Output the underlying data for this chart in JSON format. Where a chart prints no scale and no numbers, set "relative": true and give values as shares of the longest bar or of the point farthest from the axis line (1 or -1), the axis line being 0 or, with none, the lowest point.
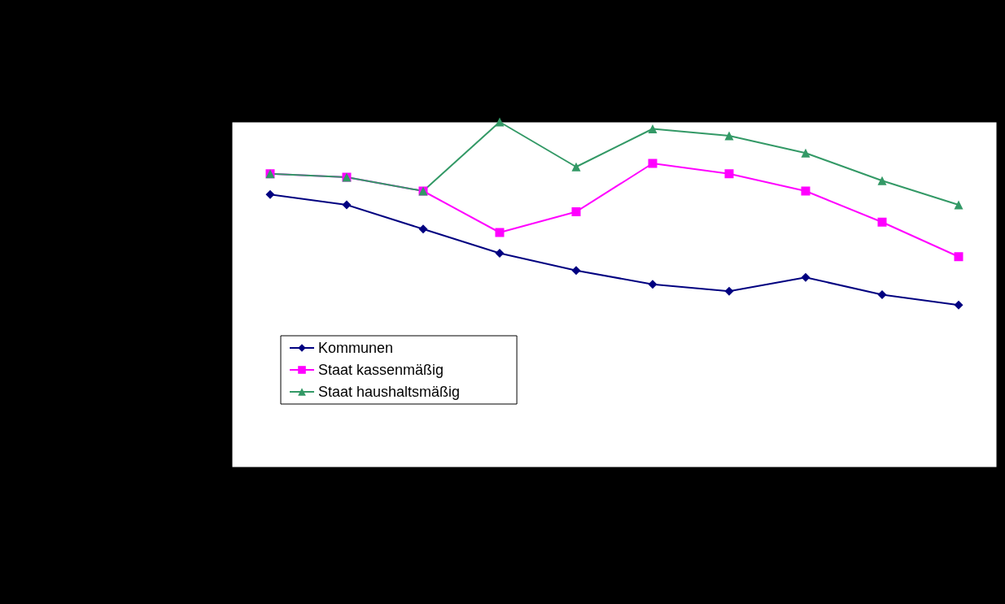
{
  "chart_data": {
    "type": "line",
    "relative": true,
    "categories": [
      null,
      null,
      null,
      null,
      null,
      null,
      null,
      null,
      null,
      null
    ],
    "series": [
      {
        "name": "Kommunen",
        "color": "#000080",
        "marker": "diamond",
        "values": [
          0.79,
          0.76,
          0.69,
          0.62,
          0.57,
          0.53,
          0.51,
          0.55,
          0.5,
          0.47
        ]
      },
      {
        "name": "Staat kassenmäßig",
        "color": "#ff00ff",
        "marker": "square",
        "values": [
          0.85,
          0.84,
          0.8,
          0.68,
          0.74,
          0.88,
          0.85,
          0.8,
          0.71,
          0.61
        ]
      },
      {
        "name": "Staat haushaltsmäßig",
        "color": "#339966",
        "marker": "triangle",
        "values": [
          0.85,
          0.84,
          0.8,
          1,
          0.87,
          0.98,
          0.96,
          0.91,
          0.83,
          0.76
        ]
      }
    ],
    "legend": "bottom left"
  }
}
